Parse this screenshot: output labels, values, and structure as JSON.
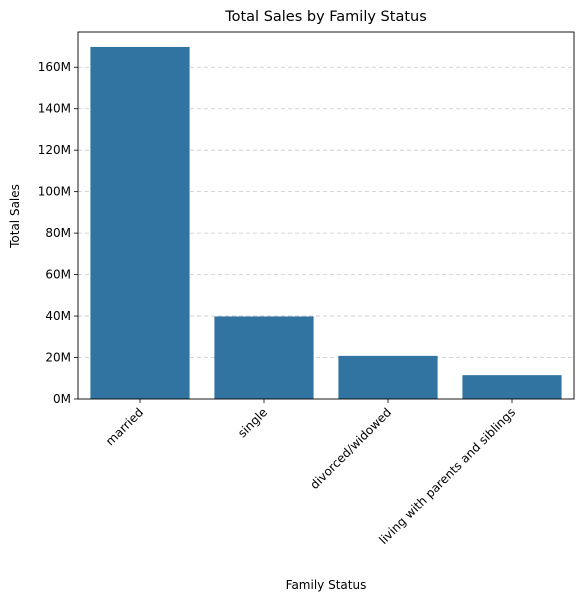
{
  "chart_data": {
    "type": "bar",
    "title": "Total Sales by Family Status",
    "xlabel": "Family Status",
    "ylabel": "Total Sales",
    "categories": [
      "married",
      "single",
      "divorced/widowed",
      "living with parents and siblings"
    ],
    "values": [
      169800000,
      39800000,
      20800000,
      11500000
    ],
    "ylim": [
      0,
      177000000
    ],
    "yticks": [
      0,
      20000000,
      40000000,
      60000000,
      80000000,
      100000000,
      120000000,
      140000000,
      160000000
    ],
    "ytick_labels": [
      "0M",
      "20M",
      "40M",
      "60M",
      "80M",
      "100M",
      "120M",
      "140M",
      "160M"
    ],
    "grid": "horizontal dashed",
    "legend": "none",
    "bar_color": "#3274a1",
    "grid_color": "#c8c8c8"
  }
}
